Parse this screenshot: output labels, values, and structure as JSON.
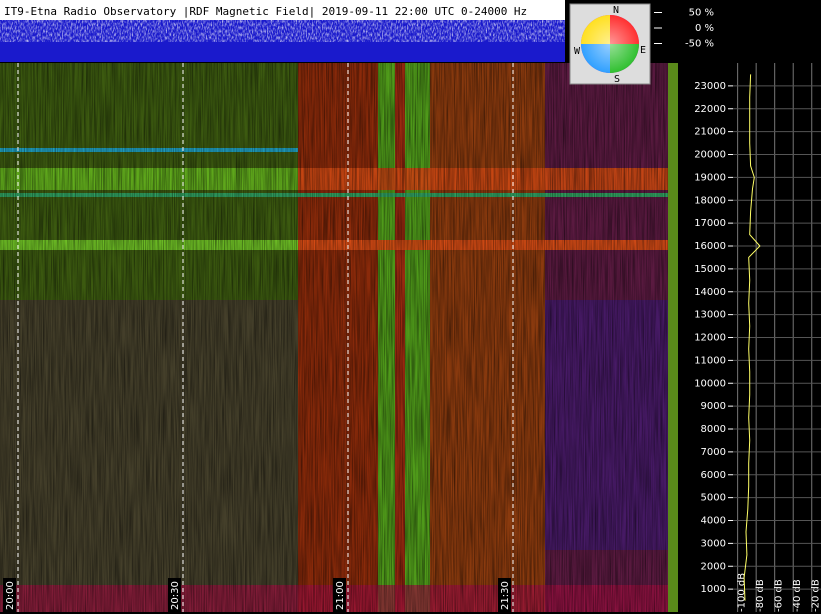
{
  "chart_data": {
    "type": "spectrogram",
    "title": "IT9-Etna Radio Observatory |RDF Magnetic Field| 2019-09-11 22:00 UTC 0-24000 Hz",
    "ylim": [
      0,
      24000
    ],
    "yticks": [
      1000,
      2000,
      3000,
      4000,
      5000,
      6000,
      7000,
      8000,
      9000,
      10000,
      11000,
      12000,
      13000,
      14000,
      15000,
      16000,
      17000,
      18000,
      19000,
      20000,
      21000,
      22000,
      23000
    ],
    "time_labels": [
      "20:00",
      "20:30",
      "21:00",
      "21:30"
    ],
    "level_ticks": [
      {
        "value": 50,
        "label": "50 %"
      },
      {
        "value": 0,
        "label": "0 %"
      },
      {
        "value": -50,
        "label": "-50 %"
      }
    ],
    "compass": [
      "N",
      "E",
      "S",
      "W"
    ],
    "spectrum": {
      "type": "line",
      "color": "#ffff66",
      "xlim": [
        -105,
        -10
      ],
      "xticks": [
        {
          "value": -100,
          "label": "-100 dB"
        },
        {
          "value": -80,
          "label": "-80 dB"
        },
        {
          "value": -60,
          "label": "-60 dB"
        },
        {
          "value": -40,
          "label": "-40 dB"
        },
        {
          "value": -20,
          "label": "-20 dB"
        }
      ],
      "frequencies": [
        500,
        1500,
        2500,
        3500,
        4500,
        5500,
        6500,
        7500,
        8500,
        9500,
        10500,
        11500,
        12500,
        13500,
        14500,
        15500,
        16000,
        16500,
        17500,
        18500,
        19000,
        19500,
        20500,
        21500,
        22500,
        23500
      ],
      "values": [
        -92,
        -93,
        -90,
        -91,
        -89,
        -88,
        -88,
        -87,
        -88,
        -87,
        -87,
        -88,
        -87,
        -88,
        -87,
        -88,
        -76,
        -87,
        -86,
        -84,
        -82,
        -86,
        -87,
        -87,
        -87,
        -86
      ]
    }
  }
}
